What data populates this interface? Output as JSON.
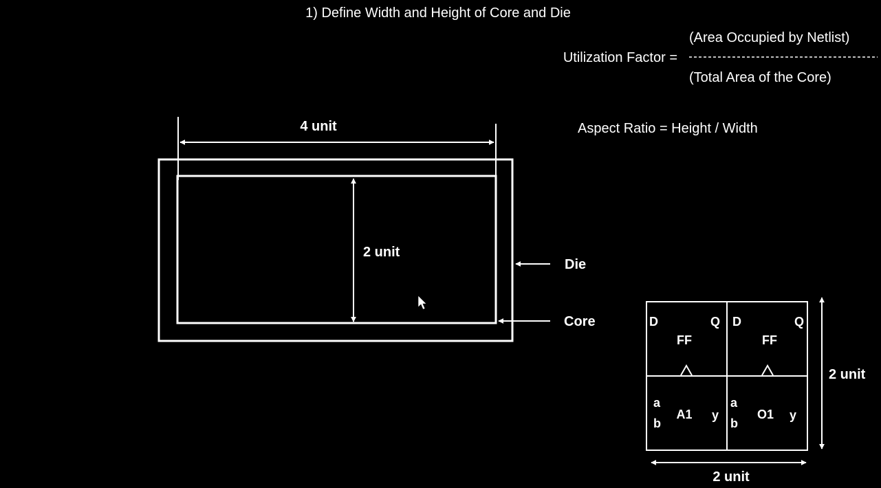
{
  "title": "1) Define Width and Height of Core and Die",
  "formulas": {
    "utilization_label": "Utilization Factor =",
    "numerator": "(Area Occupied by Netlist)",
    "denominator": "(Total Area of the Core)",
    "aspect_ratio": "Aspect Ratio = Height / Width"
  },
  "floorplan": {
    "width_label": "4 unit",
    "height_label": "2 unit",
    "die_label": "Die",
    "core_label": "Core"
  },
  "netlist": {
    "width_label": "2 unit",
    "height_label": "2 unit",
    "ff1": {
      "d": "D",
      "q": "Q",
      "name": "FF"
    },
    "ff2": {
      "d": "D",
      "q": "Q",
      "name": "FF"
    },
    "and_gate": {
      "a": "a",
      "b": "b",
      "name": "A1",
      "y": "y"
    },
    "or_gate": {
      "a": "a",
      "b": "b",
      "name": "O1",
      "y": "y"
    }
  },
  "colors": {
    "background": "#000000",
    "foreground": "#ffffff"
  },
  "icons": {
    "cursor": "mouse-pointer-icon"
  }
}
